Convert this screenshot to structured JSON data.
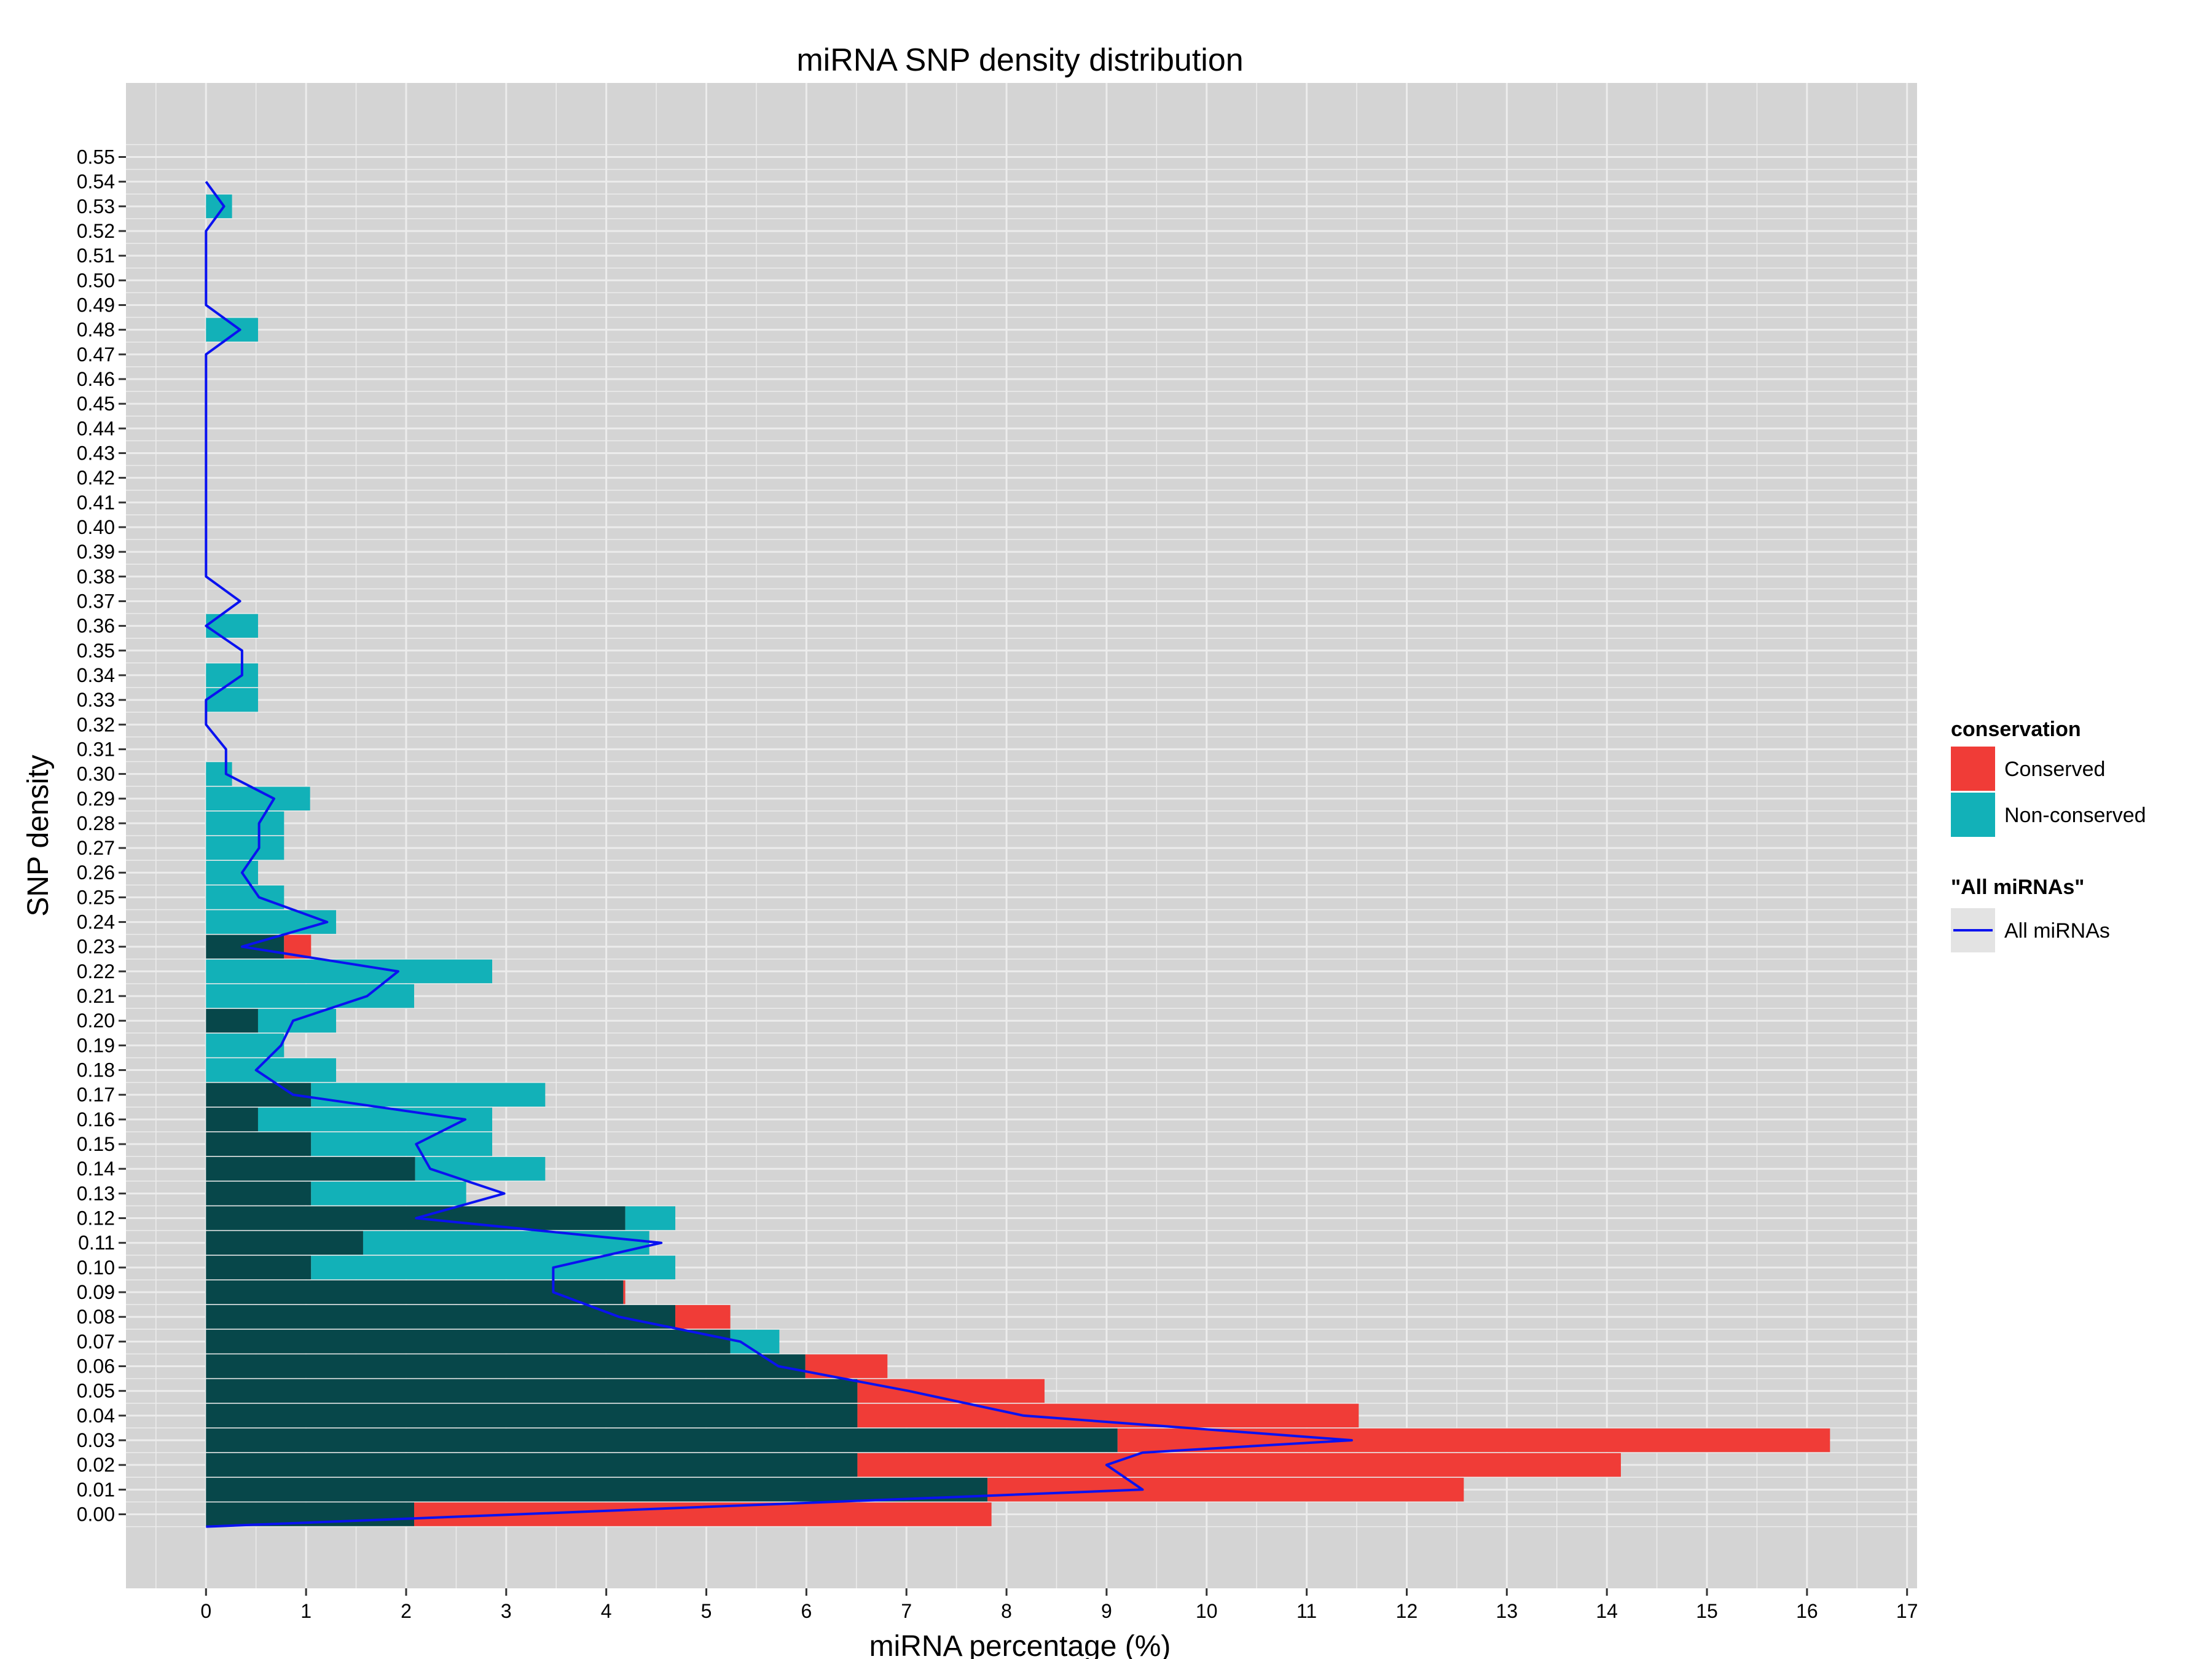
{
  "chart_data": {
    "type": "bar",
    "orientation": "horizontal",
    "stacking": "overlay",
    "title": "miRNA SNP density distribution",
    "xlabel": "miRNA percentage (%)",
    "ylabel": "SNP density",
    "xlim": [
      -0.8,
      17.1
    ],
    "ylim": [
      -0.03,
      0.58
    ],
    "xticks": [
      "0",
      "1",
      "2",
      "3",
      "4",
      "5",
      "6",
      "7",
      "8",
      "9",
      "10",
      "11",
      "12",
      "13",
      "14",
      "15",
      "16",
      "17"
    ],
    "yticks": [
      "0.00",
      "0.01",
      "0.02",
      "0.03",
      "0.04",
      "0.05",
      "0.06",
      "0.07",
      "0.08",
      "0.09",
      "0.10",
      "0.11",
      "0.12",
      "0.13",
      "0.14",
      "0.15",
      "0.16",
      "0.17",
      "0.18",
      "0.19",
      "0.20",
      "0.21",
      "0.22",
      "0.23",
      "0.24",
      "0.25",
      "0.26",
      "0.27",
      "0.28",
      "0.29",
      "0.30",
      "0.31",
      "0.32",
      "0.33",
      "0.34",
      "0.35",
      "0.36",
      "0.37",
      "0.38",
      "0.39",
      "0.40",
      "0.41",
      "0.42",
      "0.43",
      "0.44",
      "0.45",
      "0.46",
      "0.47",
      "0.48",
      "0.49",
      "0.50",
      "0.51",
      "0.52",
      "0.53",
      "0.54",
      "0.55"
    ],
    "grid": true,
    "legend_position": "right",
    "colors": {
      "panel": "#d4d4d4",
      "grid": "#ececec",
      "conserved": "#f03c37",
      "nonconserved": "#12b1b8",
      "overlap": "#07474a",
      "line": "#0a12f0"
    },
    "series": [
      {
        "name": "Conserved",
        "y": [
          0.0,
          0.01,
          0.02,
          0.03,
          0.04,
          0.05,
          0.06,
          0.07,
          0.08,
          0.09,
          0.1,
          0.11,
          0.12,
          0.13,
          0.14,
          0.15,
          0.16,
          0.17,
          0.2,
          0.23
        ],
        "values": [
          7.85,
          12.57,
          14.14,
          16.23,
          11.52,
          8.38,
          6.81,
          5.24,
          5.24,
          4.19,
          1.05,
          1.57,
          4.19,
          1.05,
          2.09,
          1.05,
          0.52,
          1.05,
          0.52,
          1.05
        ]
      },
      {
        "name": "Non-conserved",
        "y": [
          0.0,
          0.01,
          0.02,
          0.03,
          0.04,
          0.05,
          0.06,
          0.07,
          0.08,
          0.09,
          0.1,
          0.11,
          0.12,
          0.13,
          0.14,
          0.15,
          0.16,
          0.17,
          0.18,
          0.19,
          0.2,
          0.21,
          0.22,
          0.23,
          0.24,
          0.25,
          0.26,
          0.27,
          0.28,
          0.29,
          0.3,
          0.33,
          0.34,
          0.36,
          0.48,
          0.53
        ],
        "values": [
          2.08,
          7.81,
          6.51,
          9.11,
          6.51,
          6.51,
          5.99,
          5.73,
          4.69,
          4.17,
          4.69,
          4.43,
          4.69,
          2.6,
          3.39,
          2.86,
          2.86,
          3.39,
          1.3,
          0.78,
          1.3,
          2.08,
          2.86,
          0.78,
          1.3,
          0.78,
          0.52,
          0.78,
          0.78,
          1.04,
          0.26,
          0.52,
          0.52,
          0.52,
          0.52,
          0.26
        ]
      },
      {
        "name": "All miRNAs",
        "type": "line",
        "y": [
          -0.005,
          0.01,
          0.02,
          0.025,
          0.03,
          0.04,
          0.05,
          0.06,
          0.07,
          0.08,
          0.09,
          0.1,
          0.11,
          0.12,
          0.13,
          0.14,
          0.15,
          0.16,
          0.17,
          0.18,
          0.19,
          0.2,
          0.21,
          0.22,
          0.23,
          0.24,
          0.25,
          0.26,
          0.27,
          0.28,
          0.29,
          0.3,
          0.31,
          0.32,
          0.33,
          0.34,
          0.35,
          0.36,
          0.37,
          0.38,
          0.47,
          0.48,
          0.49,
          0.52,
          0.53,
          0.54
        ],
        "values": [
          0.0,
          9.36,
          9.0,
          9.36,
          11.45,
          8.17,
          7.02,
          5.72,
          5.34,
          4.13,
          3.47,
          3.47,
          4.55,
          2.1,
          2.98,
          2.24,
          2.1,
          2.59,
          0.87,
          0.5,
          0.75,
          0.87,
          1.61,
          1.92,
          0.36,
          1.21,
          0.53,
          0.36,
          0.53,
          0.53,
          0.68,
          0.2,
          0.2,
          0.0,
          0.0,
          0.36,
          0.36,
          0.0,
          0.34,
          0.0,
          0.0,
          0.34,
          0.0,
          0.0,
          0.18,
          0.0
        ]
      }
    ]
  },
  "legend": {
    "fill_title": "conservation",
    "fill_items": [
      "Conserved",
      "Non-conserved"
    ],
    "line_title": "\"All miRNAs\"",
    "line_items": [
      "All miRNAs"
    ]
  }
}
